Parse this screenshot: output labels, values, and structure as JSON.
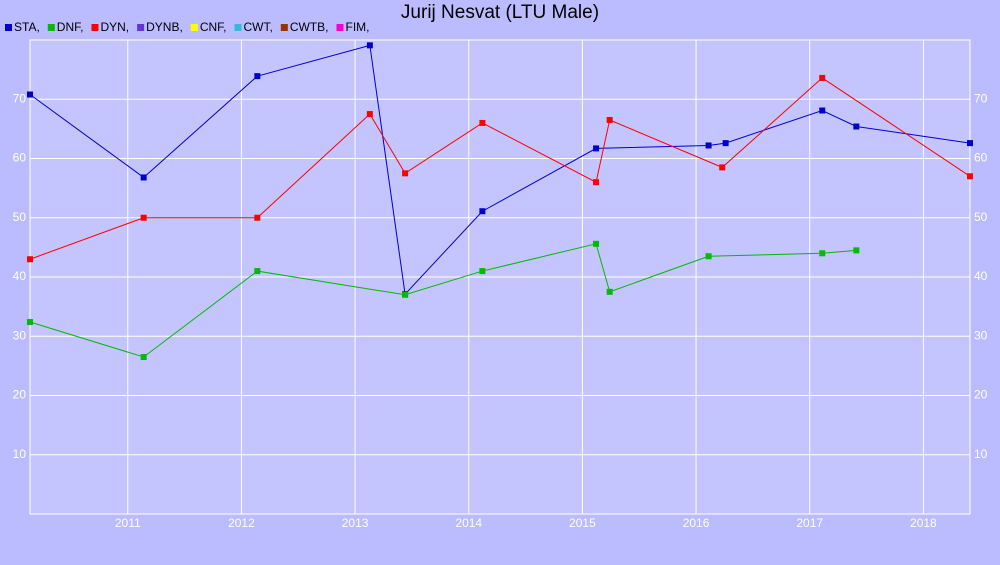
{
  "chart_data": {
    "type": "line",
    "title": "Jurij Nesvat (LTU Male)",
    "xlim": [
      2010.14,
      2018.41
    ],
    "xticks": [
      2011,
      2012,
      2013,
      2014,
      2015,
      2016,
      2017,
      2018
    ],
    "ylim": [
      0,
      80
    ],
    "yticks": [
      10,
      20,
      30,
      40,
      50,
      60,
      70
    ],
    "grid": true,
    "series": [
      {
        "name": "STA,",
        "color": "#0000cc",
        "x": [
          2010.14,
          2011.14,
          2012.14,
          2013.13,
          2013.44,
          2014.12,
          2015.12,
          2016.11,
          2016.26,
          2017.11,
          2017.41,
          2018.41
        ],
        "values": [
          70.8,
          56.8,
          73.9,
          79.1,
          37.1,
          51.1,
          61.7,
          62.2,
          62.6,
          68.1,
          65.4,
          62.6
        ]
      },
      {
        "name": "DNF,",
        "color": "#00bb00",
        "x": [
          2010.14,
          2011.14,
          2012.14,
          2013.44,
          2014.12,
          2015.12,
          2015.24,
          2016.11,
          2017.11,
          2017.41
        ],
        "values": [
          32.4,
          26.5,
          41.0,
          37.0,
          41.0,
          45.6,
          37.5,
          43.5,
          44.0,
          44.5
        ]
      },
      {
        "name": "DYN,",
        "color": "#ff0000",
        "x": [
          2010.14,
          2011.14,
          2012.14,
          2013.13,
          2013.44,
          2014.12,
          2015.12,
          2015.24,
          2016.23,
          2017.11,
          2018.41
        ],
        "values": [
          43.0,
          50.0,
          50.0,
          67.5,
          57.5,
          66.0,
          56.0,
          66.5,
          58.5,
          73.6,
          57.0
        ]
      },
      {
        "name": "DYNB,",
        "color": "#6633dd",
        "x": [],
        "values": []
      },
      {
        "name": "CNF,",
        "color": "#ffff00",
        "x": [],
        "values": []
      },
      {
        "name": "CWT,",
        "color": "#33bbdd",
        "x": [],
        "values": []
      },
      {
        "name": "CWTB,",
        "color": "#993300",
        "x": [],
        "values": []
      },
      {
        "name": "FIM,",
        "color": "#ff00cc",
        "x": [],
        "values": []
      }
    ]
  }
}
